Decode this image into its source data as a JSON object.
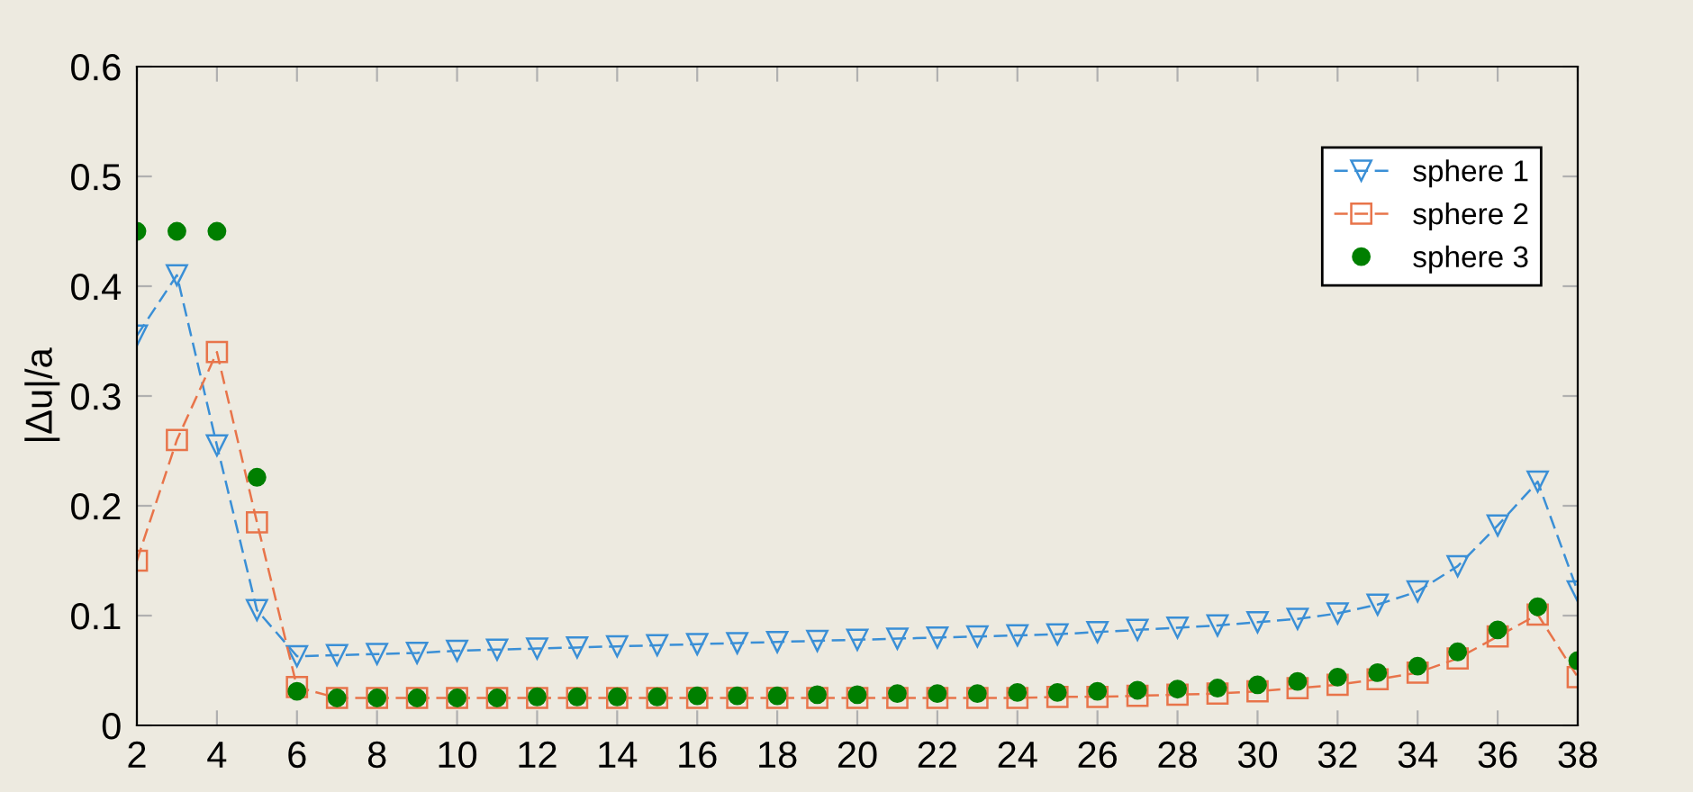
{
  "chart_data": {
    "type": "line",
    "ylabel": "|Δu|/a",
    "x": [
      2,
      3,
      4,
      5,
      6,
      7,
      8,
      9,
      10,
      11,
      12,
      13,
      14,
      15,
      16,
      17,
      18,
      19,
      20,
      21,
      22,
      23,
      24,
      25,
      26,
      27,
      28,
      29,
      30,
      31,
      32,
      33,
      34,
      35,
      36,
      37,
      38
    ],
    "xlim": [
      2,
      38
    ],
    "xticks": [
      2,
      4,
      6,
      8,
      10,
      12,
      14,
      16,
      18,
      20,
      22,
      24,
      26,
      28,
      30,
      32,
      34,
      36,
      38
    ],
    "ylim": [
      0,
      0.6
    ],
    "yticks": [
      0,
      0.1,
      0.2,
      0.3,
      0.4,
      0.5,
      0.6
    ],
    "grid": false,
    "legend": "top right",
    "series": [
      {
        "name": "sphere 1",
        "color": "#3a8fd6",
        "marker": "triangle",
        "line_style": "dashed",
        "values": [
          0.355,
          0.41,
          0.255,
          0.105,
          0.063,
          0.064,
          0.065,
          0.066,
          0.068,
          0.069,
          0.07,
          0.071,
          0.072,
          0.073,
          0.074,
          0.075,
          0.076,
          0.077,
          0.078,
          0.079,
          0.08,
          0.081,
          0.082,
          0.083,
          0.085,
          0.087,
          0.089,
          0.091,
          0.094,
          0.097,
          0.102,
          0.11,
          0.122,
          0.145,
          0.182,
          0.222,
          0.122
        ]
      },
      {
        "name": "sphere 2",
        "color": "#e8744a",
        "marker": "square",
        "line_style": "dashed",
        "values": [
          0.15,
          0.26,
          0.34,
          0.185,
          0.035,
          0.025,
          0.025,
          0.025,
          0.025,
          0.025,
          0.025,
          0.025,
          0.025,
          0.025,
          0.025,
          0.025,
          0.025,
          0.025,
          0.025,
          0.025,
          0.025,
          0.025,
          0.025,
          0.026,
          0.026,
          0.027,
          0.028,
          0.029,
          0.031,
          0.034,
          0.037,
          0.042,
          0.048,
          0.061,
          0.081,
          0.101,
          0.044
        ]
      },
      {
        "name": "sphere 3",
        "type": "scatter",
        "color": "#007f00",
        "marker": "circle",
        "values": [
          0.45,
          0.45,
          0.45,
          0.226,
          0.031,
          0.025,
          0.025,
          0.025,
          0.025,
          0.025,
          0.026,
          0.026,
          0.026,
          0.026,
          0.027,
          0.027,
          0.027,
          0.028,
          0.028,
          0.029,
          0.029,
          0.029,
          0.03,
          0.03,
          0.031,
          0.032,
          0.033,
          0.034,
          0.037,
          0.04,
          0.044,
          0.048,
          0.054,
          0.067,
          0.087,
          0.108,
          0.059
        ]
      }
    ]
  }
}
